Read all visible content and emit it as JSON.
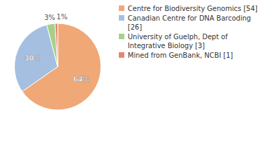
{
  "chart_data": {
    "type": "pie",
    "categories": [
      "Centre for Biodiversity Genomics [54]",
      "Canadian Centre for DNA Barcoding [26]",
      "University of Guelph, Dept of Integrative Biology [3]",
      "Mined from GenBank, NCBI [1]"
    ],
    "values": [
      64,
      30,
      3,
      1
    ],
    "value_labels": [
      "64%",
      "30%",
      "3%",
      "1%"
    ],
    "colors": [
      "#f0a877",
      "#a5bfe1",
      "#a8cf8a",
      "#e8846e"
    ],
    "data_labels": true
  }
}
